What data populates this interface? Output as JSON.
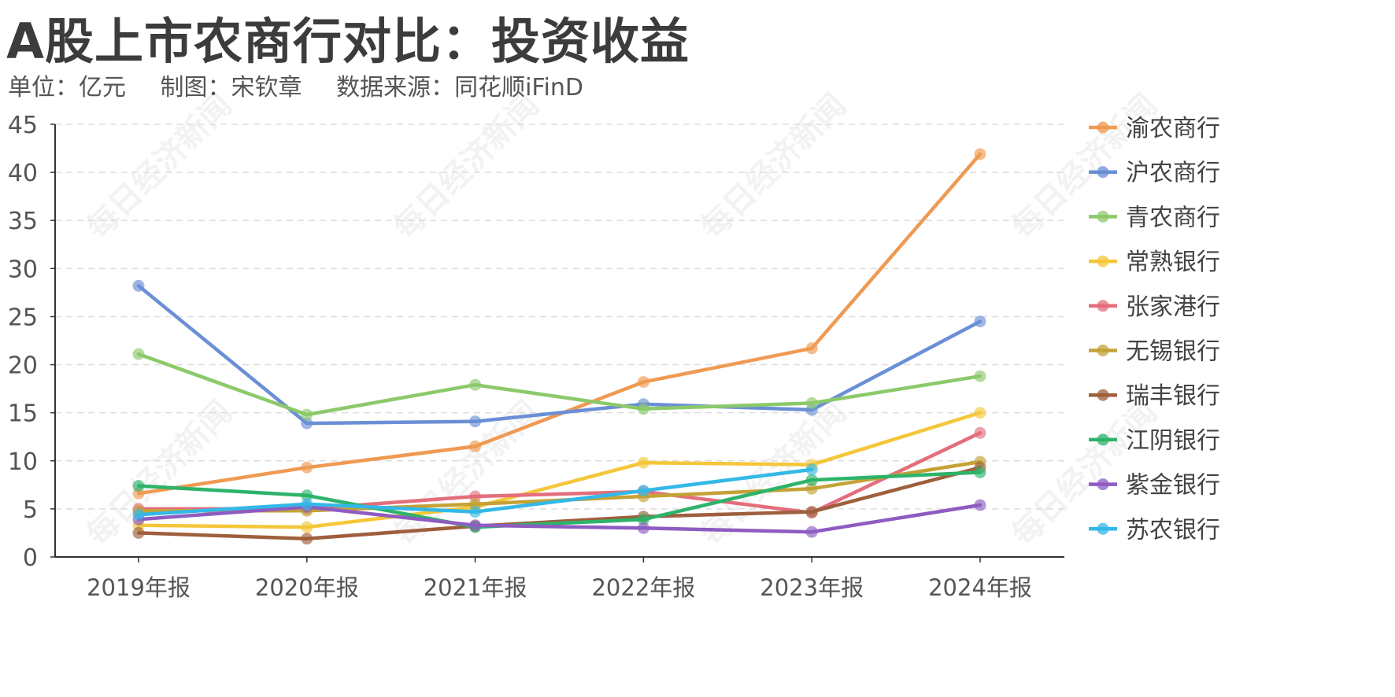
{
  "title": "A股上市农商行对比：投资收益",
  "subtitle": {
    "unit": "单位：亿元",
    "author": "制图：宋钦章",
    "source": "数据来源：同花顺iFinD"
  },
  "watermark": "每日经济新闻",
  "chart_data": {
    "type": "line",
    "categories": [
      "2019年报",
      "2020年报",
      "2021年报",
      "2022年报",
      "2023年报",
      "2024年报"
    ],
    "ylim": [
      0,
      45
    ],
    "yticks": [
      0,
      5,
      10,
      15,
      20,
      25,
      30,
      35,
      40,
      45
    ],
    "grid": true,
    "legend_position": "right",
    "series": [
      {
        "name": "渝农商行",
        "color": "#EF9A52",
        "values": [
          6.6,
          9.3,
          11.5,
          18.2,
          21.7,
          41.9
        ]
      },
      {
        "name": "沪农商行",
        "color": "#6B8FD6",
        "values": [
          28.2,
          13.9,
          14.1,
          15.9,
          15.3,
          24.5
        ]
      },
      {
        "name": "青农商行",
        "color": "#8CC96A",
        "values": [
          21.1,
          14.8,
          17.9,
          15.4,
          16.0,
          18.8
        ]
      },
      {
        "name": "常熟银行",
        "color": "#F4C73A",
        "values": [
          3.3,
          3.1,
          5.2,
          9.8,
          9.6,
          15.0
        ]
      },
      {
        "name": "张家港行",
        "color": "#E36E7C",
        "values": [
          5.0,
          5.0,
          6.3,
          6.8,
          4.6,
          12.9
        ]
      },
      {
        "name": "无锡银行",
        "color": "#C4A236",
        "values": [
          4.8,
          4.8,
          5.5,
          6.3,
          7.1,
          9.9
        ]
      },
      {
        "name": "瑞丰银行",
        "color": "#9E5F3C",
        "values": [
          2.5,
          1.9,
          3.2,
          4.2,
          4.7,
          9.3
        ]
      },
      {
        "name": "江阴银行",
        "color": "#2DB36A",
        "values": [
          7.4,
          6.4,
          3.1,
          3.9,
          8.0,
          8.8
        ]
      },
      {
        "name": "紫金银行",
        "color": "#8E5CC1",
        "values": [
          3.9,
          5.2,
          3.3,
          3.0,
          2.6,
          5.4
        ]
      },
      {
        "name": "苏农银行",
        "color": "#33B8E8",
        "values": [
          4.4,
          5.5,
          4.7,
          6.9,
          9.1,
          null
        ]
      }
    ]
  }
}
